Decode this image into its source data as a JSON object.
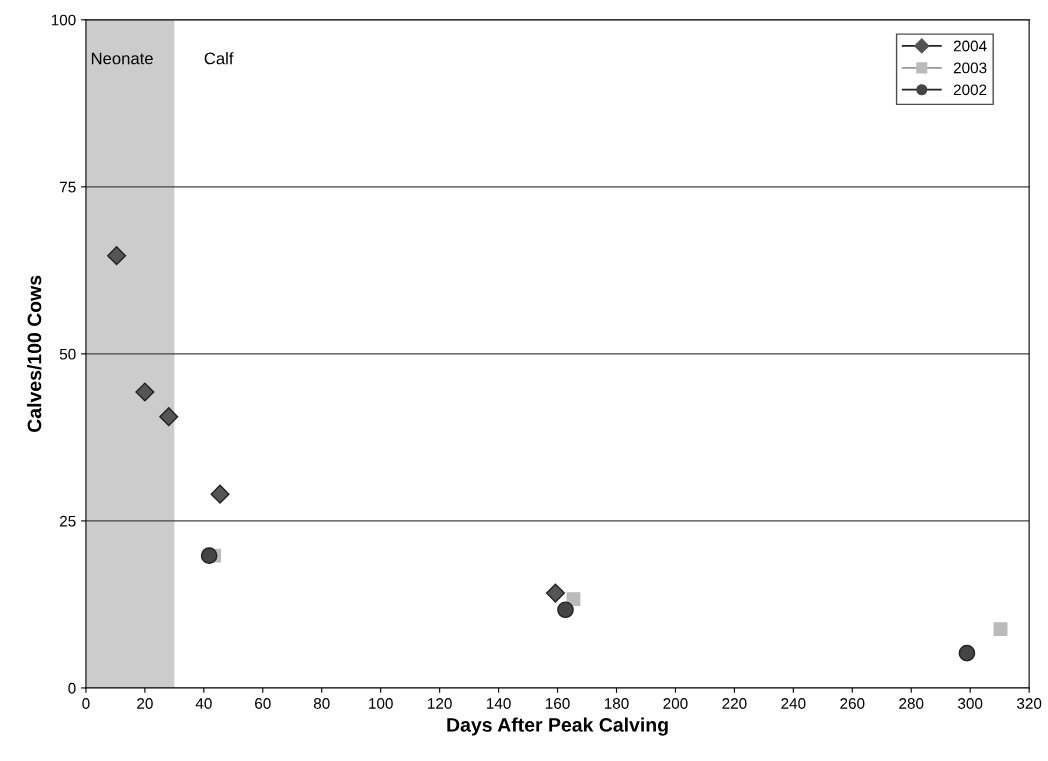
{
  "chart_data": {
    "type": "scatter",
    "xlabel": "Days After Peak Calving",
    "ylabel": "Calves/100 Cows",
    "series": [
      {
        "name": "2004",
        "color": "#555555",
        "marker": "diamond",
        "x": [
          10.4,
          20,
          28.1,
          45.5,
          159.3
        ],
        "values": [
          64.7,
          44.3,
          40.6,
          29.0,
          14.2
        ]
      },
      {
        "name": "2003",
        "color": "#bbbbbb",
        "marker": "square",
        "x": [
          43.5,
          165.4,
          310.3
        ],
        "values": [
          19.8,
          13.3,
          8.8
        ]
      },
      {
        "name": "2002",
        "color": "#444444",
        "marker": "circle",
        "x": [
          41.8,
          162.7,
          298.9
        ],
        "values": [
          19.8,
          11.7,
          5.2
        ]
      }
    ],
    "bands": [
      {
        "axis": "x",
        "from": 0,
        "to": 30,
        "label": "Neonate",
        "color": "#cccccc"
      }
    ],
    "annotations": [
      "Calf"
    ],
    "xlim": [
      0,
      320
    ],
    "xticks": [
      0,
      20,
      40,
      60,
      80,
      100,
      120,
      140,
      160,
      180,
      200,
      220,
      240,
      260,
      280,
      300,
      320
    ],
    "ylim": [
      0,
      100
    ],
    "yticks": [
      0,
      25,
      50,
      75,
      100
    ],
    "grid": "y",
    "legend": "top right"
  }
}
